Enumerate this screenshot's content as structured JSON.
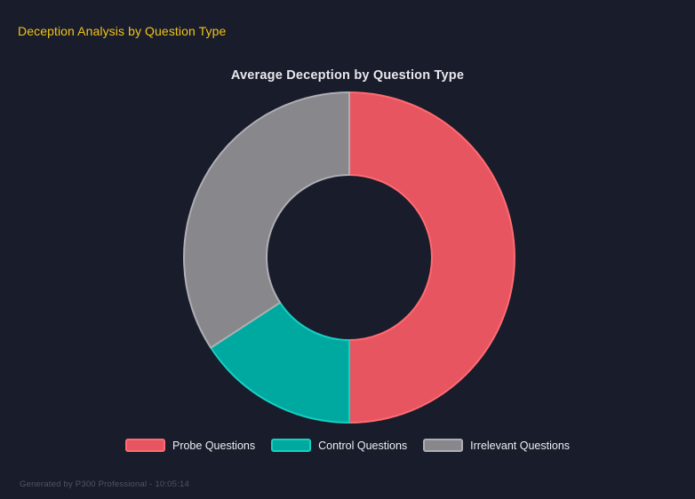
{
  "page": {
    "title": "Deception Analysis by Question Type",
    "footer": "Generated by P300 Professional - 10:05:14"
  },
  "colors": {
    "background": "#191c2b",
    "page_title": "#f0c41a",
    "chart_title": "#e8e9ed",
    "legend_text": "#eceef2",
    "footer_text": "#4e5468"
  },
  "chart_data": {
    "type": "pie",
    "variant": "doughnut",
    "title": "Average Deception by Question Type",
    "labels": [
      "Probe Questions",
      "Control Questions",
      "Irrelevant Questions"
    ],
    "values": [
      50,
      15.8,
      34.2
    ],
    "values_note": "percent share of ring, estimated from segment angles (no numeric labels shown)",
    "colors": [
      "#e65560",
      "#00a99f",
      "#87878c"
    ],
    "border_colors": [
      "#ff6b72",
      "#17cfc3",
      "#aeaeb4"
    ],
    "legend_position": "bottom",
    "start_angle_deg": 0,
    "direction": "clockwise",
    "cutout_percent": 50
  }
}
